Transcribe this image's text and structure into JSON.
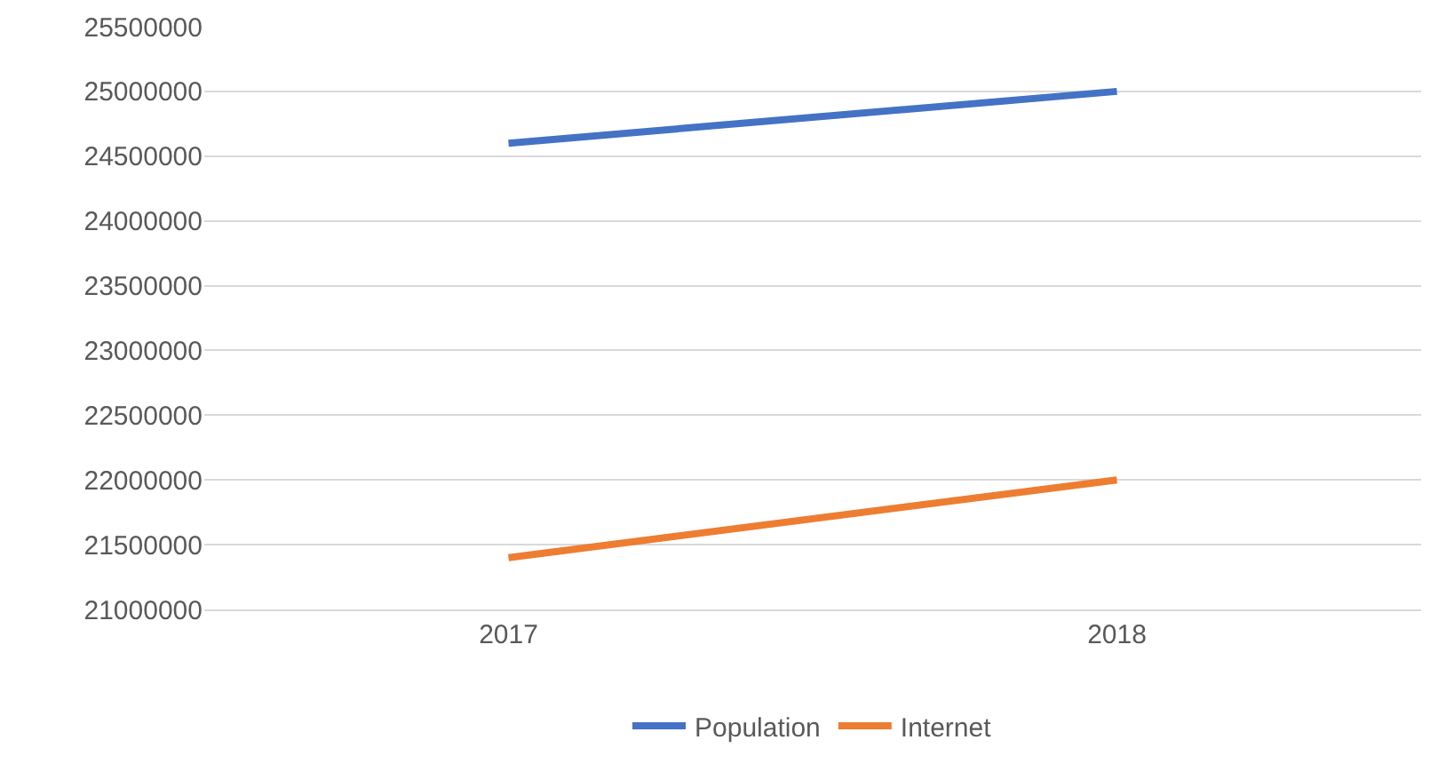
{
  "chart_data": {
    "type": "line",
    "categories": [
      "2017",
      "2018"
    ],
    "series": [
      {
        "name": "Population",
        "color": "#4472c4",
        "values": [
          24600000,
          25000000
        ]
      },
      {
        "name": "Internet",
        "color": "#ed7d31",
        "values": [
          21400000,
          22000000
        ]
      }
    ],
    "ylim": [
      21000000,
      25500000
    ],
    "yticks": [
      21000000,
      21500000,
      22000000,
      22500000,
      23000000,
      23500000,
      24000000,
      24500000,
      25000000,
      25500000
    ],
    "grid": "y",
    "legend": "bottom",
    "marker": "none",
    "line_style": "solid"
  }
}
